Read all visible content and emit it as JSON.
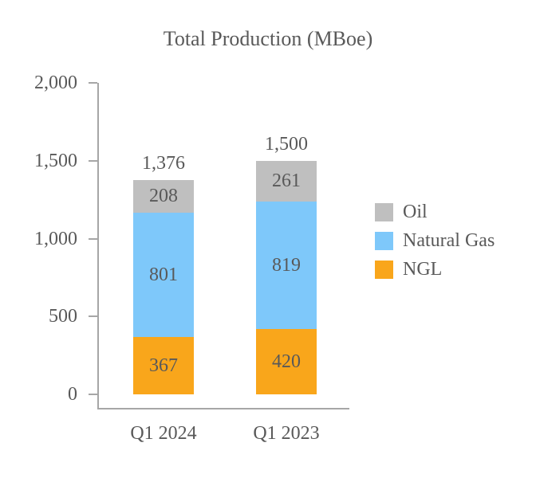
{
  "title": "Total Production (MBoe)",
  "colors": {
    "oil": "#BFBFBF",
    "natural_gas": "#7EC8FA",
    "ngl": "#F9A61B",
    "axis": "#A6A6A6",
    "text": "#595959",
    "background": "#FFFFFF"
  },
  "chart_data": {
    "type": "bar",
    "stacked": true,
    "title": "Total Production (MBoe)",
    "categories": [
      "Q1 2024",
      "Q1 2023"
    ],
    "series": [
      {
        "name": "NGL",
        "color": "#F9A61B",
        "values": [
          367,
          420
        ]
      },
      {
        "name": "Natural Gas",
        "color": "#7EC8FA",
        "values": [
          801,
          819
        ]
      },
      {
        "name": "Oil",
        "color": "#BFBFBF",
        "values": [
          208,
          261
        ]
      }
    ],
    "segment_labels": [
      [
        "367",
        "801",
        "208"
      ],
      [
        "420",
        "819",
        "261"
      ]
    ],
    "totals": [
      "1,376",
      "1,500"
    ],
    "y_axis": {
      "min": 0,
      "max": 2000,
      "tick_values": [
        2000,
        1500,
        1000,
        500,
        0
      ],
      "tick_labels": [
        "2,000",
        "1,500",
        "1,000",
        "500",
        "0"
      ],
      "grid": false
    },
    "legend": {
      "position": "right",
      "entries": [
        "Oil",
        "Natural Gas",
        "NGL"
      ]
    }
  }
}
